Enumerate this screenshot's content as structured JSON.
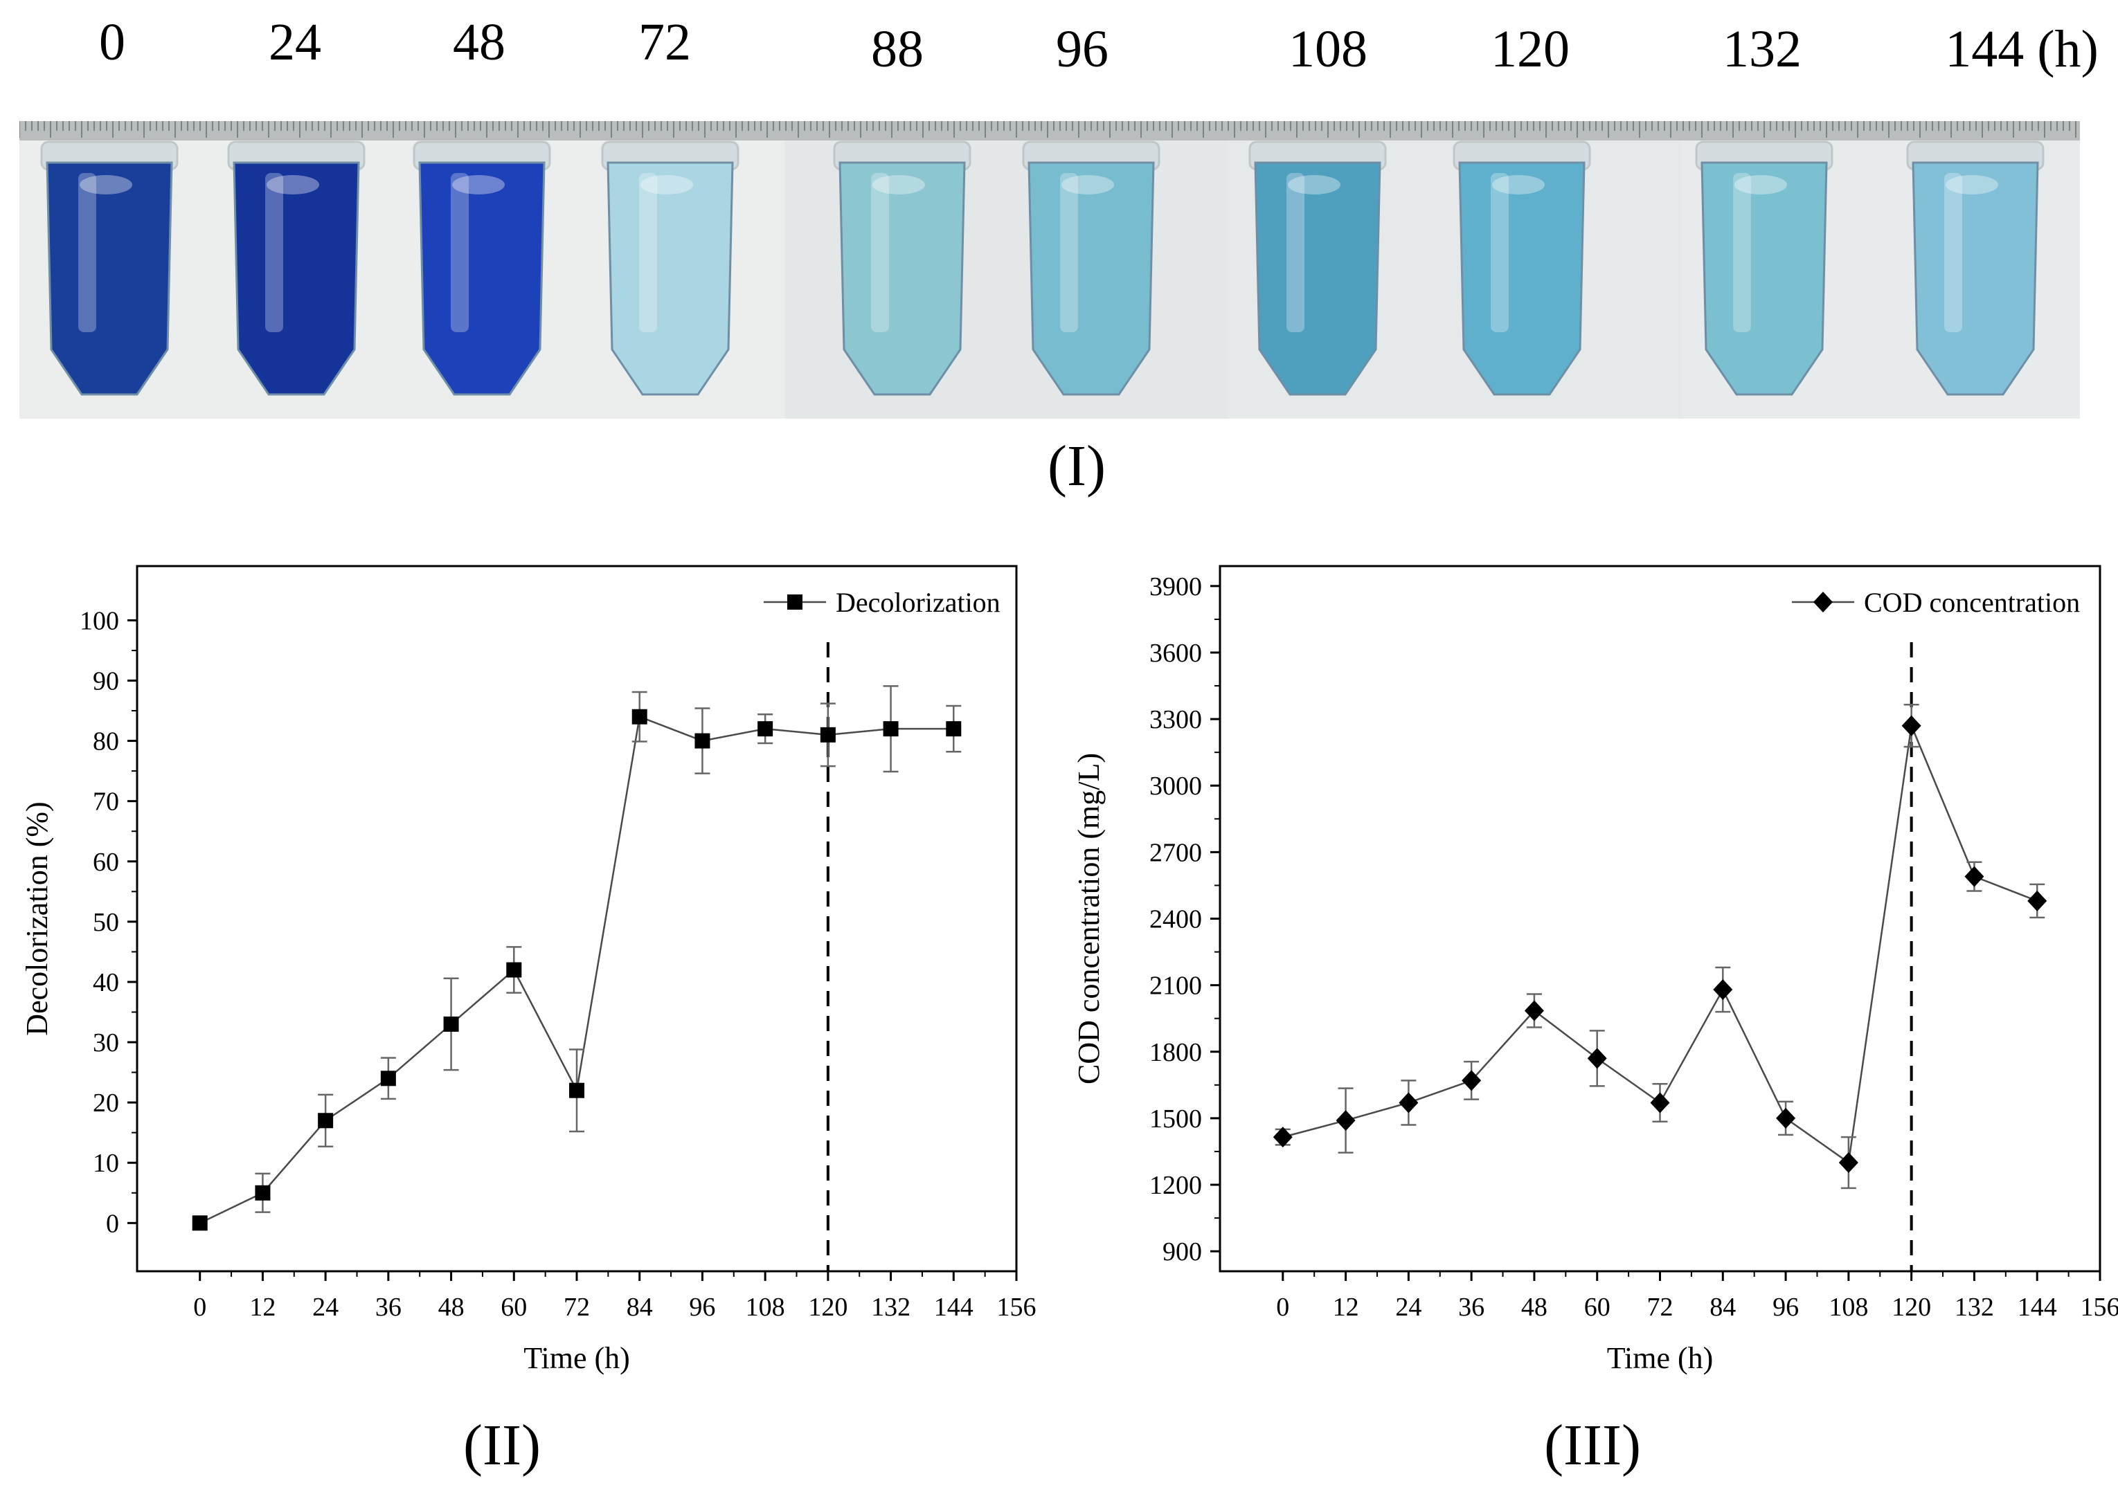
{
  "photo": {
    "time_labels": [
      "0",
      "24",
      "48",
      "72",
      "88",
      "96",
      "108",
      "120",
      "132",
      "144 (h)"
    ],
    "tube_colors": [
      "#1a3f9a",
      "#14349a",
      "#1d41b8",
      "#a9d6e2",
      "#8cc6d1",
      "#78bccf",
      "#4f9fbf",
      "#5fb0cc",
      "#7bc0d0",
      "#82c0d8"
    ]
  },
  "panels": {
    "i": "(I)",
    "ii": "(II)",
    "iii": "(III)"
  },
  "chart_data": [
    {
      "type": "line",
      "panel": "(II)",
      "xlabel": "Time (h)",
      "ylabel": "Decolorization (%)",
      "xlim": [
        -12,
        156
      ],
      "ylim": [
        -8,
        109
      ],
      "xticks": [
        0,
        12,
        24,
        36,
        48,
        60,
        72,
        84,
        96,
        108,
        120,
        132,
        144,
        156
      ],
      "yticks": [
        0,
        10,
        20,
        30,
        40,
        50,
        60,
        70,
        80,
        90,
        100
      ],
      "series": [
        {
          "name": "Decolorization",
          "marker": "square",
          "color": "#000000",
          "x": [
            0,
            12,
            24,
            36,
            48,
            60,
            72,
            84,
            96,
            108,
            120,
            132,
            144
          ],
          "y": [
            0,
            5,
            17,
            24,
            33,
            42,
            22,
            84,
            80,
            82,
            81,
            82,
            82
          ],
          "error": [
            0,
            3.2,
            4.3,
            3.4,
            7.6,
            3.8,
            6.8,
            4.1,
            5.4,
            2.4,
            5.2,
            7.1,
            3.8
          ]
        }
      ],
      "vline": 120,
      "legend": "top-right",
      "grid": false
    },
    {
      "type": "line",
      "panel": "(III)",
      "xlabel": "Time (h)",
      "ylabel": "COD concentration (mg/L)",
      "xlim": [
        -12,
        156
      ],
      "ylim": [
        810,
        3990
      ],
      "xticks": [
        0,
        12,
        24,
        36,
        48,
        60,
        72,
        84,
        96,
        108,
        120,
        132,
        144,
        156
      ],
      "yticks": [
        900,
        1200,
        1500,
        1800,
        2100,
        2400,
        2700,
        3000,
        3300,
        3600,
        3900
      ],
      "series": [
        {
          "name": "COD concentration",
          "marker": "diamond",
          "color": "#000000",
          "x": [
            0,
            12,
            24,
            36,
            48,
            60,
            72,
            84,
            96,
            108,
            120,
            132,
            144
          ],
          "y": [
            1415,
            1490,
            1570,
            1670,
            1985,
            1770,
            1570,
            2080,
            1500,
            1300,
            3270,
            2590,
            2480
          ],
          "error": [
            35,
            145,
            100,
            85,
            75,
            125,
            85,
            100,
            75,
            115,
            95,
            65,
            75
          ]
        }
      ],
      "vline": 120,
      "legend": "top-right",
      "grid": false
    }
  ]
}
